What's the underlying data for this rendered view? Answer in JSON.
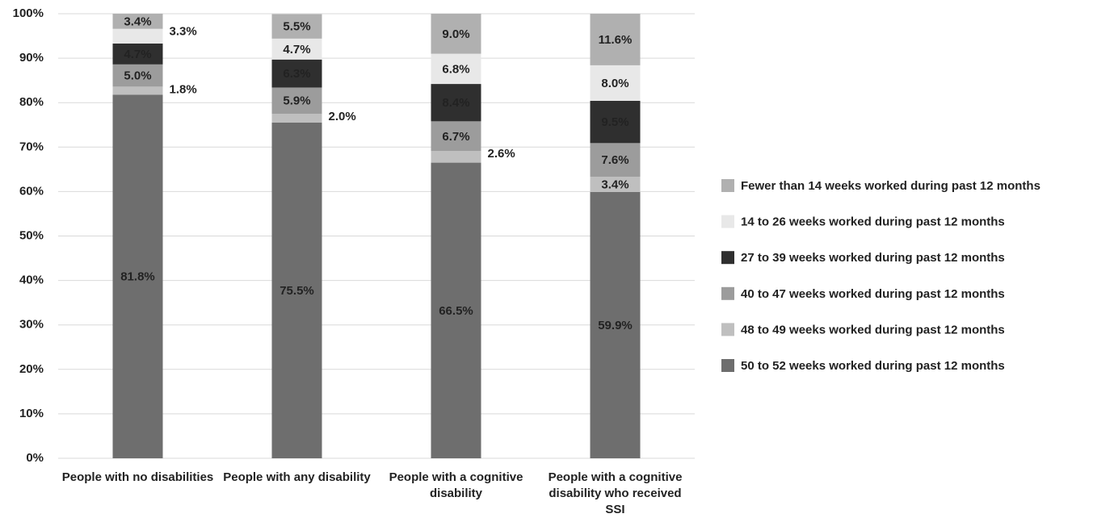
{
  "chart_data": {
    "type": "stacked_bar",
    "categories": [
      "People with no disabilities",
      "People with any disability",
      "People with a cognitive disability",
      "People with a cognitive disability who received  SSI"
    ],
    "series": [
      {
        "name": "50 to 52 weeks worked during past 12 months",
        "color": "#6e6e6e",
        "values": [
          81.8,
          75.5,
          66.5,
          59.9
        ],
        "value_labels": [
          "81.8%",
          "75.5%",
          "66.5%",
          "59.9%"
        ]
      },
      {
        "name": "48 to 49 weeks worked during past 12 months",
        "color": "#bfbfbf",
        "values": [
          1.8,
          2.0,
          2.6,
          3.4
        ],
        "value_labels": [
          "1.8%",
          "2.0%",
          "2.6%",
          "3.4%"
        ]
      },
      {
        "name": "40 to 47 weeks worked during past 12 months",
        "color": "#9c9c9c",
        "values": [
          5.0,
          5.9,
          6.7,
          7.6
        ],
        "value_labels": [
          "5.0%",
          "5.9%",
          "6.7%",
          "7.6%"
        ]
      },
      {
        "name": "27 to 39 weeks worked during past 12 months",
        "color": "#2f2f2f",
        "values": [
          4.7,
          6.3,
          8.4,
          9.5
        ],
        "value_labels": [
          "4.7%",
          "6.3%",
          "8.4%",
          "9.5%"
        ]
      },
      {
        "name": "14 to 26 weeks worked during past 12 months",
        "color": "#e8e8e8",
        "values": [
          3.3,
          4.7,
          6.8,
          8.0
        ],
        "value_labels": [
          "3.3%",
          "4.7%",
          "6.8%",
          "8.0%"
        ]
      },
      {
        "name": "Fewer than 14 weeks worked during past 12 months",
        "color": "#b0b0b0",
        "values": [
          3.4,
          5.5,
          9.0,
          11.6
        ],
        "value_labels": [
          "3.4%",
          "5.5%",
          "9.0%",
          "11.6%"
        ]
      }
    ],
    "ylim": [
      0,
      100
    ],
    "yticks": [
      {
        "value": 0,
        "label": "0%"
      },
      {
        "value": 10,
        "label": "10%"
      },
      {
        "value": 20,
        "label": "20%"
      },
      {
        "value": 30,
        "label": "30%"
      },
      {
        "value": 40,
        "label": "40%"
      },
      {
        "value": 50,
        "label": "50%"
      },
      {
        "value": 60,
        "label": "60%"
      },
      {
        "value": 70,
        "label": "70%"
      },
      {
        "value": 80,
        "label": "80%"
      },
      {
        "value": 90,
        "label": "90%"
      },
      {
        "value": 100,
        "label": "100%"
      }
    ],
    "grid": true,
    "legend": "right"
  }
}
